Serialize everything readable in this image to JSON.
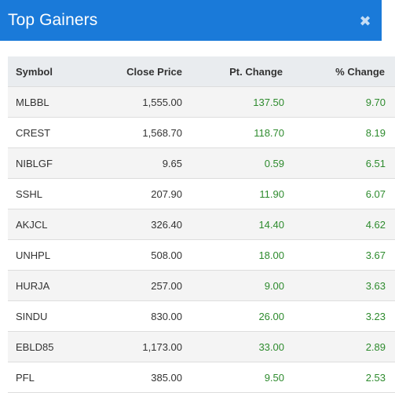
{
  "modal": {
    "title": "Top Gainers",
    "close_glyph": "✖",
    "close_icon": "close-icon"
  },
  "colors": {
    "header_bg": "#1a7ad9",
    "gain_text": "#2e8b2e",
    "table_head_bg": "#e9ecef",
    "row_stripe": "#f4f4f4"
  },
  "table": {
    "headers": [
      "Symbol",
      "Close Price",
      "Pt. Change",
      "% Change"
    ],
    "rows": [
      {
        "symbol": "MLBBL",
        "close": "1,555.00",
        "pt": "137.50",
        "pct": "9.70"
      },
      {
        "symbol": "CREST",
        "close": "1,568.70",
        "pt": "118.70",
        "pct": "8.19"
      },
      {
        "symbol": "NIBLGF",
        "close": "9.65",
        "pt": "0.59",
        "pct": "6.51"
      },
      {
        "symbol": "SSHL",
        "close": "207.90",
        "pt": "11.90",
        "pct": "6.07"
      },
      {
        "symbol": "AKJCL",
        "close": "326.40",
        "pt": "14.40",
        "pct": "4.62"
      },
      {
        "symbol": "UNHPL",
        "close": "508.00",
        "pt": "18.00",
        "pct": "3.67"
      },
      {
        "symbol": "HURJA",
        "close": "257.00",
        "pt": "9.00",
        "pct": "3.63"
      },
      {
        "symbol": "SINDU",
        "close": "830.00",
        "pt": "26.00",
        "pct": "3.23"
      },
      {
        "symbol": "EBLD85",
        "close": "1,173.00",
        "pt": "33.00",
        "pct": "2.89"
      },
      {
        "symbol": "PFL",
        "close": "385.00",
        "pt": "9.50",
        "pct": "2.53"
      }
    ]
  }
}
